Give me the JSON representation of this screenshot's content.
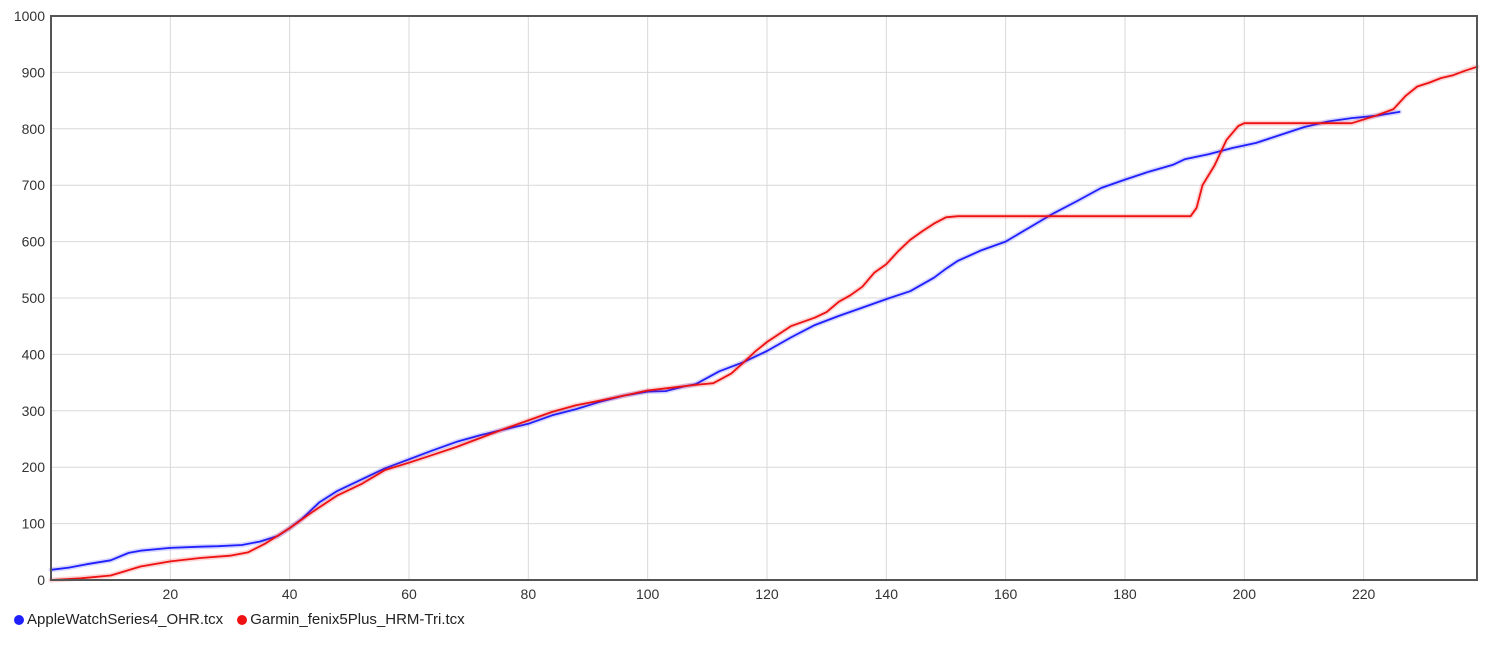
{
  "chart_data": {
    "type": "line",
    "title": "",
    "xlabel": "",
    "ylabel": "",
    "xlim": [
      0,
      239
    ],
    "ylim": [
      0,
      1000
    ],
    "x_ticks": [
      20,
      40,
      60,
      80,
      100,
      120,
      140,
      160,
      180,
      200,
      220
    ],
    "y_ticks": [
      0,
      100,
      200,
      300,
      400,
      500,
      600,
      700,
      800,
      900,
      1000
    ],
    "grid": true,
    "legend_position": "bottom-left",
    "series": [
      {
        "name": "AppleWatchSeries4_OHR.tcx",
        "color": "#1f1fff",
        "points": [
          [
            0,
            18
          ],
          [
            3,
            22
          ],
          [
            6,
            28
          ],
          [
            10,
            35
          ],
          [
            13,
            48
          ],
          [
            15,
            52
          ],
          [
            18,
            55
          ],
          [
            20,
            57
          ],
          [
            25,
            59
          ],
          [
            28,
            60
          ],
          [
            32,
            62
          ],
          [
            35,
            68
          ],
          [
            38,
            78
          ],
          [
            40,
            92
          ],
          [
            42,
            108
          ],
          [
            45,
            138
          ],
          [
            48,
            158
          ],
          [
            52,
            178
          ],
          [
            56,
            198
          ],
          [
            60,
            214
          ],
          [
            64,
            230
          ],
          [
            68,
            245
          ],
          [
            72,
            257
          ],
          [
            76,
            267
          ],
          [
            80,
            277
          ],
          [
            84,
            292
          ],
          [
            88,
            303
          ],
          [
            92,
            316
          ],
          [
            96,
            327
          ],
          [
            100,
            334
          ],
          [
            103,
            335
          ],
          [
            106,
            343
          ],
          [
            108,
            347
          ],
          [
            112,
            370
          ],
          [
            116,
            386
          ],
          [
            120,
            406
          ],
          [
            124,
            430
          ],
          [
            128,
            452
          ],
          [
            132,
            468
          ],
          [
            136,
            483
          ],
          [
            140,
            498
          ],
          [
            144,
            512
          ],
          [
            148,
            536
          ],
          [
            150,
            552
          ],
          [
            152,
            566
          ],
          [
            156,
            585
          ],
          [
            160,
            600
          ],
          [
            164,
            625
          ],
          [
            168,
            650
          ],
          [
            172,
            672
          ],
          [
            176,
            695
          ],
          [
            180,
            710
          ],
          [
            184,
            724
          ],
          [
            188,
            736
          ],
          [
            190,
            746
          ],
          [
            194,
            755
          ],
          [
            198,
            766
          ],
          [
            202,
            775
          ],
          [
            206,
            789
          ],
          [
            210,
            803
          ],
          [
            214,
            813
          ],
          [
            218,
            819
          ],
          [
            222,
            823
          ],
          [
            226,
            830
          ]
        ]
      },
      {
        "name": "Garmin_fenix5Plus_HRM-Tri.tcx",
        "color": "#ee1111",
        "points": [
          [
            0,
            0
          ],
          [
            5,
            3
          ],
          [
            10,
            8
          ],
          [
            15,
            24
          ],
          [
            20,
            33
          ],
          [
            25,
            39
          ],
          [
            30,
            43
          ],
          [
            33,
            49
          ],
          [
            36,
            65
          ],
          [
            40,
            92
          ],
          [
            44,
            122
          ],
          [
            48,
            150
          ],
          [
            52,
            170
          ],
          [
            56,
            195
          ],
          [
            60,
            208
          ],
          [
            64,
            222
          ],
          [
            68,
            236
          ],
          [
            72,
            252
          ],
          [
            76,
            268
          ],
          [
            80,
            283
          ],
          [
            84,
            298
          ],
          [
            88,
            310
          ],
          [
            92,
            318
          ],
          [
            96,
            327
          ],
          [
            100,
            336
          ],
          [
            104,
            341
          ],
          [
            108,
            346
          ],
          [
            111,
            349
          ],
          [
            114,
            366
          ],
          [
            116,
            385
          ],
          [
            118,
            405
          ],
          [
            120,
            422
          ],
          [
            124,
            450
          ],
          [
            128,
            465
          ],
          [
            130,
            475
          ],
          [
            132,
            493
          ],
          [
            134,
            505
          ],
          [
            136,
            520
          ],
          [
            138,
            545
          ],
          [
            140,
            560
          ],
          [
            142,
            583
          ],
          [
            144,
            603
          ],
          [
            146,
            618
          ],
          [
            148,
            632
          ],
          [
            150,
            643
          ],
          [
            152,
            645
          ],
          [
            191,
            645
          ],
          [
            192,
            660
          ],
          [
            193,
            700
          ],
          [
            195,
            735
          ],
          [
            197,
            780
          ],
          [
            199,
            805
          ],
          [
            200,
            810
          ],
          [
            218,
            810
          ],
          [
            222,
            823
          ],
          [
            225,
            835
          ],
          [
            227,
            858
          ],
          [
            229,
            875
          ],
          [
            231,
            882
          ],
          [
            233,
            890
          ],
          [
            235,
            895
          ],
          [
            237,
            903
          ],
          [
            239,
            910
          ]
        ]
      }
    ]
  }
}
